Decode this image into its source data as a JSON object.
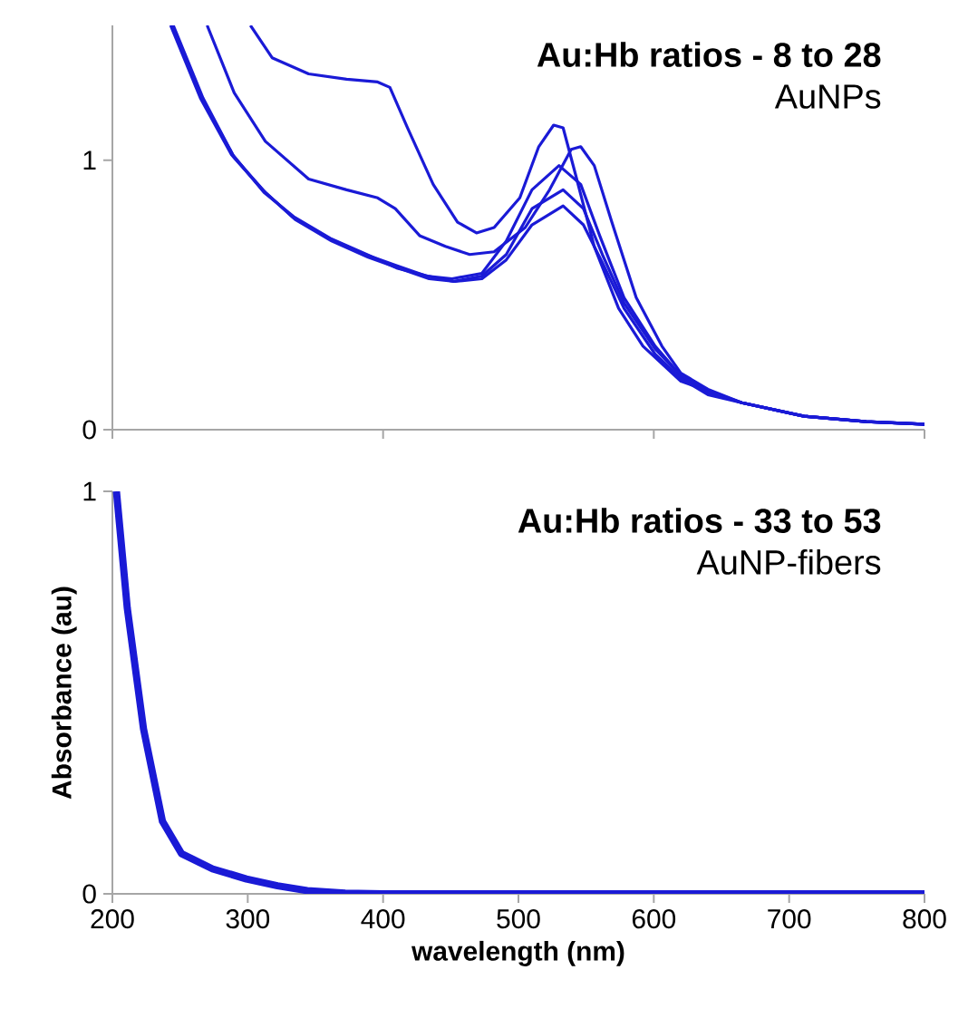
{
  "chart_data": [
    {
      "type": "line",
      "title": "Au:Hb ratios - 8 to 28",
      "subtitle": "AuNPs",
      "xlim": [
        200,
        800
      ],
      "ylim": [
        0,
        1.5
      ],
      "xticks": [
        {
          "value": 200,
          "label": null
        },
        {
          "value": 400,
          "label": null
        },
        {
          "value": 600,
          "label": null
        },
        {
          "value": 800,
          "label": null
        }
      ],
      "yticks": [
        0,
        1
      ],
      "tick_labels": "y",
      "line_style": "solid",
      "series": [
        {
          "color": "#1a1ad6",
          "x": [
            302,
            318,
            345,
            373,
            396,
            405,
            418,
            437,
            455,
            469,
            482,
            501,
            515,
            526,
            533,
            542,
            556,
            574,
            592,
            620,
            665,
            711,
            757,
            800
          ],
          "values": [
            1.5,
            1.38,
            1.32,
            1.3,
            1.29,
            1.27,
            1.12,
            0.91,
            0.77,
            0.73,
            0.75,
            0.86,
            1.05,
            1.13,
            1.12,
            0.95,
            0.68,
            0.45,
            0.31,
            0.18,
            0.1,
            0.05,
            0.03,
            0.02
          ]
        },
        {
          "color": "#1a1ad6",
          "x": [
            270,
            290,
            313,
            345,
            373,
            396,
            409,
            427,
            446,
            464,
            482,
            505,
            523,
            539,
            546,
            556,
            569,
            587,
            606,
            620,
            640,
            665,
            711,
            757,
            800
          ],
          "values": [
            1.5,
            1.25,
            1.07,
            0.93,
            0.89,
            0.86,
            0.82,
            0.72,
            0.68,
            0.65,
            0.66,
            0.75,
            0.89,
            1.04,
            1.05,
            0.98,
            0.77,
            0.49,
            0.31,
            0.21,
            0.15,
            0.1,
            0.05,
            0.03,
            0.02
          ]
        },
        {
          "color": "#1a1ad6",
          "x": [
            243,
            265,
            288,
            311,
            333,
            360,
            387,
            409,
            432,
            451,
            473,
            491,
            510,
            530,
            546,
            560,
            578,
            601,
            620,
            640,
            665,
            711,
            757,
            800
          ],
          "values": [
            1.5,
            1.23,
            1.02,
            0.89,
            0.79,
            0.71,
            0.65,
            0.61,
            0.57,
            0.56,
            0.58,
            0.7,
            0.89,
            0.98,
            0.91,
            0.72,
            0.49,
            0.31,
            0.2,
            0.14,
            0.1,
            0.05,
            0.03,
            0.02
          ]
        },
        {
          "color": "#1a1ad6",
          "x": [
            244,
            266,
            289,
            312,
            334,
            361,
            388,
            410,
            433,
            452,
            473,
            491,
            510,
            533,
            548,
            562,
            578,
            601,
            620,
            640,
            665,
            711,
            757,
            800
          ],
          "values": [
            1.5,
            1.23,
            1.02,
            0.88,
            0.79,
            0.71,
            0.65,
            0.6,
            0.57,
            0.55,
            0.57,
            0.65,
            0.82,
            0.89,
            0.82,
            0.65,
            0.47,
            0.3,
            0.2,
            0.14,
            0.1,
            0.05,
            0.03,
            0.02
          ]
        },
        {
          "color": "#1a1ad6",
          "x": [
            245,
            267,
            290,
            313,
            335,
            362,
            389,
            411,
            434,
            453,
            473,
            491,
            510,
            533,
            548,
            562,
            578,
            601,
            620,
            640,
            665,
            711,
            757,
            800
          ],
          "values": [
            1.5,
            1.23,
            1.01,
            0.88,
            0.78,
            0.7,
            0.64,
            0.6,
            0.56,
            0.55,
            0.56,
            0.63,
            0.76,
            0.83,
            0.76,
            0.62,
            0.45,
            0.28,
            0.19,
            0.13,
            0.1,
            0.05,
            0.03,
            0.02
          ]
        }
      ]
    },
    {
      "type": "line",
      "title": "Au:Hb ratios - 33 to 53",
      "subtitle": "AuNP-fibers",
      "xlabel": "wavelength (nm)",
      "ylabel": "Absorbance (au)",
      "xlim": [
        200,
        800
      ],
      "ylim": [
        0,
        1
      ],
      "xticks": [
        200,
        300,
        400,
        500,
        600,
        700,
        800
      ],
      "yticks": [
        0,
        1
      ],
      "line_style": "solid",
      "series": [
        {
          "color": "#1a1ad6",
          "x": [
            203,
            211,
            223,
            237,
            251,
            274,
            299,
            322,
            344,
            372,
            400,
            500,
            600,
            700,
            800
          ],
          "values": [
            1,
            0.71,
            0.41,
            0.18,
            0.1,
            0.062,
            0.037,
            0.02,
            0.008,
            0.002,
            0,
            0,
            0,
            0,
            0
          ]
        }
      ]
    }
  ]
}
